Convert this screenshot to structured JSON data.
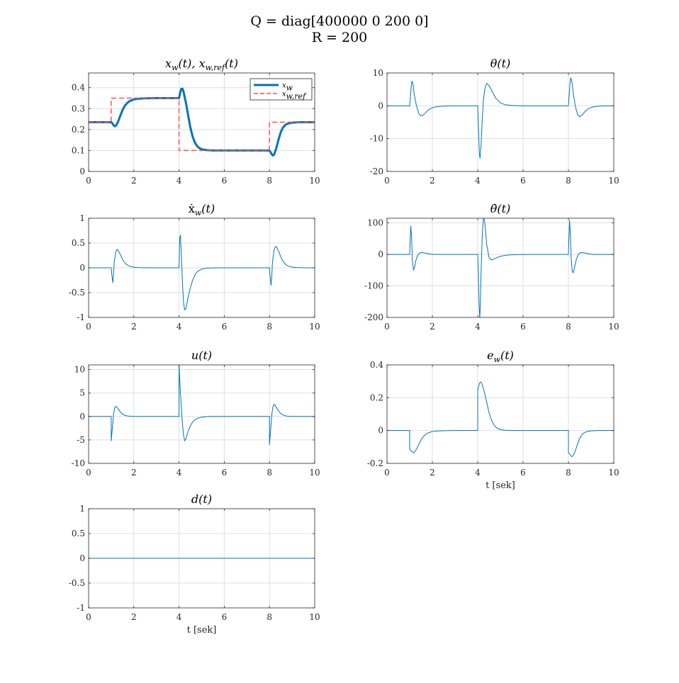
{
  "figure": {
    "title_line1": "Q = diag[400000 0 200 0]",
    "title_line2": "R = 200"
  },
  "chart_data": [
    {
      "type": "line",
      "id": "xw",
      "title": "x_w(t), x_{w,ref}(t)",
      "xlabel": "",
      "ylabel": "",
      "xlim": [
        0,
        10
      ],
      "ylim": [
        0,
        0.47
      ],
      "xticks": [
        0,
        2,
        4,
        6,
        8,
        10
      ],
      "xtick_labels": [
        "0",
        "2",
        "4",
        "6",
        "8",
        "10"
      ],
      "yticks": [
        0,
        0.1,
        0.2,
        0.3,
        0.4
      ],
      "ytick_labels": [
        "0",
        "0.1",
        "0.2",
        "0.3",
        "0.4"
      ],
      "grid": true,
      "legend": "top-right",
      "series": [
        {
          "name": "x_w",
          "color": "#0072BD",
          "style": "solid-thick",
          "x": [
            0,
            1.0,
            1.05,
            1.1,
            1.15,
            1.2,
            1.3,
            1.4,
            1.5,
            1.6,
            1.7,
            1.8,
            2.0,
            2.2,
            2.5,
            3.0,
            3.5,
            4.0,
            4.05,
            4.1,
            4.15,
            4.2,
            4.3,
            4.4,
            4.5,
            4.6,
            4.7,
            4.8,
            4.9,
            5.0,
            5.2,
            5.5,
            6.0,
            7.0,
            8.0,
            8.05,
            8.1,
            8.15,
            8.2,
            8.3,
            8.4,
            8.5,
            8.6,
            8.7,
            8.8,
            9.0,
            9.3,
            9.6,
            10.0
          ],
          "y": [
            0.235,
            0.235,
            0.23,
            0.221,
            0.216,
            0.217,
            0.236,
            0.265,
            0.293,
            0.313,
            0.326,
            0.335,
            0.344,
            0.347,
            0.349,
            0.35,
            0.35,
            0.35,
            0.375,
            0.394,
            0.395,
            0.38,
            0.33,
            0.27,
            0.21,
            0.167,
            0.138,
            0.121,
            0.111,
            0.106,
            0.102,
            0.1,
            0.1,
            0.1,
            0.1,
            0.092,
            0.082,
            0.076,
            0.08,
            0.11,
            0.152,
            0.188,
            0.21,
            0.222,
            0.228,
            0.233,
            0.235,
            0.235,
            0.235
          ]
        },
        {
          "name": "x_{w,ref}",
          "color": "#FF5050",
          "style": "dashed",
          "x": [
            0,
            1,
            1,
            4,
            4,
            8,
            8,
            10
          ],
          "y": [
            0.235,
            0.235,
            0.35,
            0.35,
            0.1,
            0.1,
            0.235,
            0.235
          ]
        }
      ]
    },
    {
      "type": "line",
      "id": "theta",
      "title": "θ(t)",
      "xlabel": "",
      "ylabel": "",
      "xlim": [
        0,
        10
      ],
      "ylim": [
        -20,
        10
      ],
      "xticks": [
        0,
        2,
        4,
        6,
        8,
        10
      ],
      "xtick_labels": [
        "0",
        "2",
        "4",
        "6",
        "8",
        "10"
      ],
      "yticks": [
        -20,
        -10,
        0,
        10
      ],
      "ytick_labels": [
        "-20",
        "-10",
        "0",
        "10"
      ],
      "grid": true,
      "series": [
        {
          "name": "",
          "color": "#0072BD",
          "style": "solid",
          "x": [
            0,
            1.0,
            1.03,
            1.07,
            1.1,
            1.15,
            1.2,
            1.3,
            1.4,
            1.5,
            1.6,
            1.7,
            1.8,
            1.9,
            2.0,
            2.2,
            2.5,
            3.0,
            4.0,
            4.03,
            4.07,
            4.1,
            4.15,
            4.2,
            4.25,
            4.3,
            4.35,
            4.4,
            4.5,
            4.6,
            4.7,
            4.8,
            5.0,
            5.2,
            5.5,
            6.0,
            7.0,
            8.0,
            8.03,
            8.07,
            8.1,
            8.15,
            8.2,
            8.3,
            8.4,
            8.5,
            8.6,
            8.7,
            8.8,
            8.9,
            9.0,
            9.2,
            9.5,
            10.0
          ],
          "y": [
            0,
            0,
            2.5,
            6,
            7.5,
            6.5,
            3.5,
            0,
            -2.3,
            -3.1,
            -2.8,
            -2.1,
            -1.4,
            -0.9,
            -0.6,
            -0.25,
            -0.08,
            0,
            0,
            -6,
            -14,
            -16,
            -12,
            -4,
            1.5,
            4.5,
            6.2,
            6.8,
            6.2,
            4.9,
            3.5,
            2.3,
            0.9,
            0.35,
            0.1,
            0,
            0,
            0,
            3,
            7,
            8.5,
            7.5,
            4.5,
            0,
            -2.6,
            -3.3,
            -2.8,
            -2.0,
            -1.3,
            -0.8,
            -0.5,
            -0.2,
            -0.05,
            0
          ]
        }
      ]
    },
    {
      "type": "line",
      "id": "xw_dot",
      "title": "ẋ_w(t)",
      "xlabel": "",
      "ylabel": "",
      "xlim": [
        0,
        10
      ],
      "ylim": [
        -1,
        1
      ],
      "xticks": [
        0,
        2,
        4,
        6,
        8,
        10
      ],
      "xtick_labels": [
        "0",
        "2",
        "4",
        "6",
        "8",
        "10"
      ],
      "yticks": [
        -1,
        -0.5,
        0,
        0.5,
        1
      ],
      "ytick_labels": [
        "-1",
        "-0.5",
        "0",
        "0.5",
        "1"
      ],
      "grid": true,
      "series": [
        {
          "name": "",
          "color": "#0072BD",
          "style": "solid",
          "x": [
            0,
            1.0,
            1.03,
            1.07,
            1.1,
            1.13,
            1.2,
            1.25,
            1.3,
            1.4,
            1.5,
            1.6,
            1.7,
            1.8,
            2.0,
            2.2,
            2.5,
            3.0,
            4.0,
            4.03,
            4.06,
            4.1,
            4.15,
            4.2,
            4.25,
            4.3,
            4.35,
            4.4,
            4.5,
            4.6,
            4.7,
            4.8,
            5.0,
            5.2,
            5.5,
            6.0,
            7.0,
            8.0,
            8.03,
            8.07,
            8.1,
            8.13,
            8.2,
            8.25,
            8.3,
            8.4,
            8.5,
            8.6,
            8.7,
            8.8,
            9.0,
            9.2,
            9.5,
            10.0
          ],
          "y": [
            0,
            0,
            -0.15,
            -0.3,
            -0.15,
            0.1,
            0.32,
            0.37,
            0.36,
            0.27,
            0.17,
            0.1,
            0.06,
            0.035,
            0.012,
            0.004,
            0.001,
            0,
            0,
            0.6,
            0.66,
            0.3,
            -0.3,
            -0.7,
            -0.85,
            -0.82,
            -0.72,
            -0.6,
            -0.4,
            -0.25,
            -0.15,
            -0.08,
            -0.025,
            -0.008,
            -0.002,
            0,
            0,
            0,
            -0.18,
            -0.35,
            -0.2,
            0.1,
            0.35,
            0.42,
            0.43,
            0.34,
            0.22,
            0.13,
            0.075,
            0.042,
            0.015,
            0.005,
            0.001,
            0
          ]
        }
      ]
    },
    {
      "type": "line",
      "id": "theta_dot",
      "title": "θ̇(t)",
      "xlabel": "",
      "ylabel": "",
      "xlim": [
        0,
        10
      ],
      "ylim": [
        -200,
        115
      ],
      "xticks": [
        0,
        2,
        4,
        6,
        8,
        10
      ],
      "xtick_labels": [
        "0",
        "2",
        "4",
        "6",
        "8",
        "10"
      ],
      "yticks": [
        -200,
        -100,
        0,
        100
      ],
      "ytick_labels": [
        "-200",
        "-100",
        "0",
        "100"
      ],
      "grid": true,
      "series": [
        {
          "name": "",
          "color": "#0072BD",
          "style": "solid",
          "x": [
            0,
            1.0,
            1.02,
            1.05,
            1.08,
            1.12,
            1.17,
            1.22,
            1.27,
            1.35,
            1.45,
            1.55,
            1.7,
            1.9,
            2.1,
            2.4,
            2.8,
            3.3,
            4.0,
            4.03,
            4.06,
            4.09,
            4.12,
            4.15,
            4.2,
            4.25,
            4.3,
            4.35,
            4.4,
            4.5,
            4.6,
            4.7,
            4.85,
            5.0,
            5.3,
            5.7,
            6.2,
            7.0,
            8.0,
            8.02,
            8.05,
            8.08,
            8.12,
            8.17,
            8.22,
            8.27,
            8.35,
            8.45,
            8.55,
            8.7,
            8.9,
            9.1,
            9.4,
            9.8,
            10.0
          ],
          "y": [
            0,
            0,
            40,
            90,
            60,
            -20,
            -50,
            -40,
            -20,
            -3,
            5,
            6,
            4,
            1,
            0,
            0,
            0,
            0,
            0,
            -60,
            -160,
            -205,
            -150,
            -50,
            60,
            115,
            110,
            70,
            30,
            -10,
            -18,
            -15,
            -10,
            -6,
            -2,
            -0.5,
            0,
            0,
            0,
            50,
            108,
            70,
            -10,
            -55,
            -58,
            -40,
            -15,
            2,
            6,
            5,
            2,
            0,
            0,
            0,
            0
          ]
        }
      ]
    },
    {
      "type": "line",
      "id": "u",
      "title": "u(t)",
      "xlabel": "",
      "ylabel": "",
      "xlim": [
        0,
        10
      ],
      "ylim": [
        -10,
        11
      ],
      "xticks": [
        0,
        2,
        4,
        6,
        8,
        10
      ],
      "xtick_labels": [
        "0",
        "2",
        "4",
        "6",
        "8",
        "10"
      ],
      "yticks": [
        -10,
        -5,
        0,
        5,
        10
      ],
      "ytick_labels": [
        "-10",
        "-5",
        "0",
        "5",
        "10"
      ],
      "grid": true,
      "series": [
        {
          "name": "",
          "color": "#0072BD",
          "style": "solid",
          "x": [
            0,
            1.0,
            1.0,
            1.05,
            1.1,
            1.15,
            1.2,
            1.3,
            1.4,
            1.5,
            1.6,
            1.7,
            1.8,
            2.0,
            2.2,
            2.5,
            3.0,
            4.0,
            4.0,
            4.05,
            4.1,
            4.15,
            4.2,
            4.25,
            4.3,
            4.4,
            4.5,
            4.6,
            4.7,
            4.8,
            5.0,
            5.2,
            5.5,
            6.0,
            7.0,
            8.0,
            8.0,
            8.05,
            8.1,
            8.15,
            8.2,
            8.3,
            8.4,
            8.5,
            8.6,
            8.7,
            8.8,
            9.0,
            9.2,
            9.5,
            10.0
          ],
          "y": [
            0,
            0,
            -5.2,
            -2.5,
            0.3,
            1.8,
            2.2,
            1.7,
            1.0,
            0.5,
            0.25,
            0.12,
            0.06,
            0.02,
            0.005,
            0,
            0,
            0,
            11,
            6,
            2,
            -1.5,
            -4,
            -5.2,
            -4.8,
            -3.2,
            -2.0,
            -1.2,
            -0.7,
            -0.4,
            -0.15,
            -0.05,
            0,
            0,
            0,
            0,
            -6,
            -3,
            0.3,
            2.0,
            2.6,
            2.0,
            1.2,
            0.6,
            0.3,
            0.15,
            0.07,
            0.02,
            0.005,
            0,
            0
          ]
        }
      ]
    },
    {
      "type": "line",
      "id": "ew",
      "title": "e_w(t)",
      "xlabel": "t [sek]",
      "ylabel": "",
      "xlim": [
        0,
        10
      ],
      "ylim": [
        -0.2,
        0.4
      ],
      "xticks": [
        0,
        2,
        4,
        6,
        8,
        10
      ],
      "xtick_labels": [
        "0",
        "2",
        "4",
        "6",
        "8",
        "10"
      ],
      "yticks": [
        -0.2,
        0,
        0.2,
        0.4
      ],
      "ytick_labels": [
        "-0.2",
        "0",
        "0.2",
        "0.4"
      ],
      "grid": true,
      "series": [
        {
          "name": "",
          "color": "#0072BD",
          "style": "solid",
          "x": [
            0,
            1.0,
            1.0,
            1.05,
            1.1,
            1.15,
            1.2,
            1.3,
            1.4,
            1.5,
            1.6,
            1.7,
            1.8,
            2.0,
            2.2,
            2.5,
            3.0,
            4.0,
            4.0,
            4.05,
            4.1,
            4.15,
            4.2,
            4.3,
            4.4,
            4.5,
            4.6,
            4.7,
            4.8,
            4.9,
            5.0,
            5.2,
            5.5,
            6.0,
            7.0,
            8.0,
            8.0,
            8.05,
            8.1,
            8.15,
            8.2,
            8.3,
            8.4,
            8.5,
            8.6,
            8.7,
            8.8,
            9.0,
            9.3,
            9.6,
            10.0
          ],
          "y": [
            0,
            0,
            -0.115,
            -0.12,
            -0.129,
            -0.134,
            -0.133,
            -0.114,
            -0.085,
            -0.057,
            -0.037,
            -0.024,
            -0.015,
            -0.006,
            -0.003,
            -0.001,
            0,
            0,
            0.25,
            0.275,
            0.294,
            0.295,
            0.28,
            0.23,
            0.17,
            0.11,
            0.067,
            0.038,
            0.021,
            0.011,
            0.006,
            0.002,
            0,
            0,
            0,
            0,
            -0.135,
            -0.143,
            -0.153,
            -0.159,
            -0.155,
            -0.125,
            -0.083,
            -0.047,
            -0.025,
            -0.013,
            -0.007,
            -0.002,
            0,
            0,
            0
          ]
        }
      ]
    },
    {
      "type": "line",
      "id": "d",
      "title": "d(t)",
      "xlabel": "t [sek]",
      "ylabel": "",
      "xlim": [
        0,
        10
      ],
      "ylim": [
        -1,
        1
      ],
      "xticks": [
        0,
        2,
        4,
        6,
        8,
        10
      ],
      "xtick_labels": [
        "0",
        "2",
        "4",
        "6",
        "8",
        "10"
      ],
      "yticks": [
        -1,
        -0.5,
        0,
        0.5,
        1
      ],
      "ytick_labels": [
        "-1",
        "-0.5",
        "0",
        "0.5",
        "1"
      ],
      "grid": true,
      "series": [
        {
          "name": "",
          "color": "#0072BD",
          "style": "solid",
          "x": [
            0,
            10
          ],
          "y": [
            0,
            0
          ]
        }
      ]
    }
  ]
}
